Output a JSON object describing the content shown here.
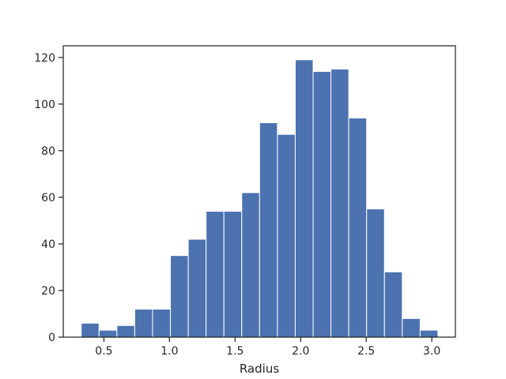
{
  "chart_data": {
    "type": "bar",
    "subtype": "histogram",
    "title": "",
    "xlabel": "Radius",
    "ylabel": "",
    "bin_edges": [
      0.327,
      0.463,
      0.599,
      0.735,
      0.871,
      1.007,
      1.143,
      1.279,
      1.415,
      1.551,
      1.687,
      1.823,
      1.959,
      2.095,
      2.231,
      2.367,
      2.503,
      2.639,
      2.775,
      2.911,
      3.047
    ],
    "counts": [
      6,
      3,
      5,
      12,
      12,
      35,
      42,
      54,
      54,
      62,
      92,
      87,
      119,
      114,
      115,
      94,
      55,
      28,
      8,
      3
    ],
    "xlim": [
      0.19,
      3.18
    ],
    "ylim": [
      0,
      125
    ],
    "xticks": [
      "0.5",
      "1.0",
      "1.5",
      "2.0",
      "2.5",
      "3.0"
    ],
    "xtick_values": [
      0.5,
      1.0,
      1.5,
      2.0,
      2.5,
      3.0
    ],
    "yticks": [
      "0",
      "20",
      "40",
      "60",
      "80",
      "100",
      "120"
    ],
    "ytick_values": [
      0,
      20,
      40,
      60,
      80,
      100,
      120
    ],
    "grid": false,
    "bar_color": "#4c72b0",
    "edge_color": "#ffffff"
  }
}
